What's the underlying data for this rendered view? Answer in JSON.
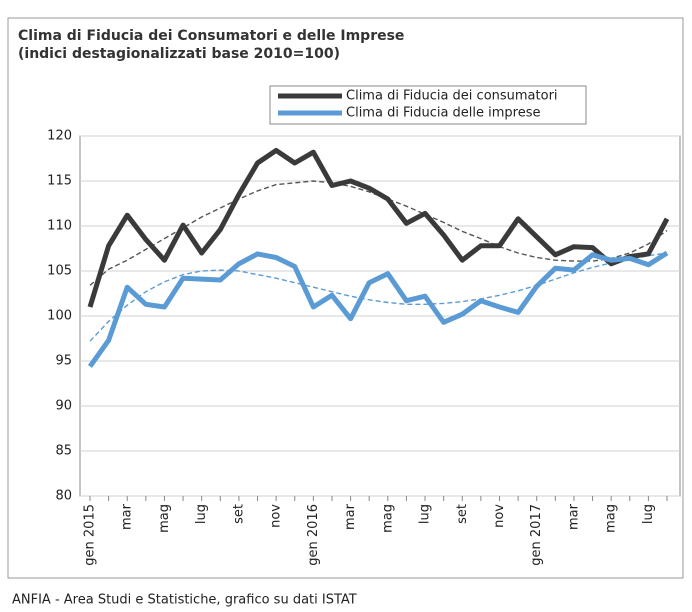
{
  "chart_data": {
    "type": "line",
    "title": "Clima di Fiducia dei Consumatori e delle Imprese",
    "subtitle": "(indici destagionalizzati base 2010=100)",
    "source": "ANFIA - Area Studi e Statistiche, grafico su dati ISTAT",
    "categories": [
      "gen 2015",
      null,
      "mar",
      null,
      "mag",
      null,
      "lug",
      null,
      "set",
      null,
      "nov",
      null,
      "gen 2016",
      null,
      "mar",
      null,
      "mag",
      null,
      "lug",
      null,
      "set",
      null,
      "nov",
      null,
      "gen 2017",
      null,
      "mar",
      null,
      "mag",
      null,
      "lug",
      null
    ],
    "series": [
      {
        "name": "Clima di Fiducia dei consumatori",
        "color": "#3a3a3a",
        "values": [
          101,
          107.8,
          111.2,
          108.5,
          106.2,
          110.1,
          107,
          109.6,
          113.5,
          117,
          118.4,
          117,
          118.2,
          114.5,
          115,
          114.2,
          113,
          110.3,
          111.4,
          109,
          106.2,
          107.8,
          107.8,
          110.8,
          108.8,
          106.8,
          107.7,
          107.6,
          105.8,
          106.6,
          106.9,
          110.8
        ]
      },
      {
        "name": "Clima di Fiducia delle imprese",
        "color": "#5b9bd5",
        "values": [
          94.4,
          97.3,
          103.2,
          101.3,
          101,
          104.2,
          104.1,
          104,
          105.8,
          106.9,
          106.5,
          105.5,
          101,
          102.3,
          99.7,
          103.7,
          104.7,
          101.7,
          102.2,
          99.3,
          100.2,
          101.7,
          101,
          100.4,
          103.3,
          105.3,
          105.1,
          106.8,
          106.2,
          106.4,
          105.7,
          107
        ]
      },
      {
        "color": "#555555",
        "dashed": true,
        "values": [
          103.4,
          105.2,
          106.2,
          107.4,
          108.6,
          109.8,
          111,
          112,
          113,
          113.9,
          114.6,
          114.8,
          115,
          114.8,
          114.4,
          113.8,
          113,
          112.2,
          111.3,
          110.4,
          109.4,
          108.6,
          107.7,
          107,
          106.5,
          106.2,
          106.1,
          106.1,
          106.4,
          107,
          108,
          109.5
        ]
      },
      {
        "color": "#5b9bd5",
        "dashed": true,
        "values": [
          97.2,
          99.4,
          101.2,
          102.7,
          103.8,
          104.6,
          105,
          105.1,
          105,
          104.6,
          104.2,
          103.7,
          103.2,
          102.7,
          102.2,
          101.8,
          101.5,
          101.3,
          101.3,
          101.4,
          101.6,
          101.9,
          102.3,
          102.8,
          103.4,
          104.1,
          104.8,
          105.4,
          105.9,
          106.3,
          106.7,
          107
        ]
      }
    ],
    "ylim": [
      80,
      120
    ],
    "yticks": [
      80,
      85,
      90,
      95,
      100,
      105,
      110,
      115,
      120
    ],
    "grid": true
  }
}
